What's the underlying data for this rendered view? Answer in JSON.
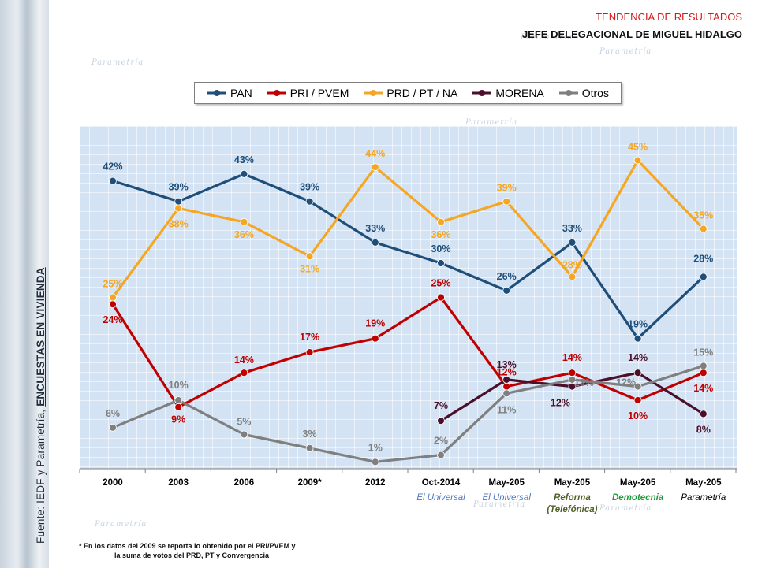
{
  "header": {
    "title": "TENDENCIA DE RESULTADOS",
    "subtitle": "JEFE DELEGACIONAL DE MIGUEL HIDALGO"
  },
  "background_word": "Parametría",
  "source": {
    "prefix": "Fuente: IEDF y Parametría, ",
    "emphasis": "ENCUESTAS EN VIVIENDA"
  },
  "footnote": {
    "line1": "* En los datos del 2009  se reporta lo obtenido por el PRI/PVEM y",
    "line2": "la suma de votos del PRD, PT y  Convergencia"
  },
  "chart_data": {
    "type": "line",
    "title": "TENDENCIA DE RESULTADOS",
    "categories": [
      "2000",
      "2003",
      "2006",
      "2009*",
      "2012",
      "Oct-2014",
      "May-205",
      "May-205",
      "May-205",
      "May-205"
    ],
    "category_sources": [
      "",
      "",
      "",
      "",
      "",
      "El Universal",
      "El Universal",
      "Reforma (Telefónica)",
      "Demotecnia",
      "Parametría"
    ],
    "source_colors": [
      "",
      "",
      "",
      "",
      "",
      "#4f79c0",
      "#4f79c0",
      "#4f6228",
      "#1f9a3a",
      "#000000"
    ],
    "ylim": [
      0,
      50
    ],
    "grid": true,
    "legend_position": "top",
    "series": [
      {
        "name": "PAN",
        "color": "#1f4e79",
        "values": [
          42,
          39,
          43,
          39,
          33,
          30,
          26,
          33,
          19,
          28
        ]
      },
      {
        "name": "PRI / PVEM",
        "color": "#c00000",
        "values": [
          24,
          9,
          14,
          17,
          19,
          25,
          12,
          14,
          10,
          14
        ]
      },
      {
        "name": "PRD / PT / NA",
        "color": "#f5a623",
        "values": [
          25,
          38,
          36,
          31,
          44,
          36,
          39,
          28,
          45,
          35
        ]
      },
      {
        "name": "MORENA",
        "color": "#4a0f2a",
        "values": [
          null,
          null,
          null,
          null,
          null,
          7,
          13,
          12,
          14,
          8
        ]
      },
      {
        "name": "Otros",
        "color": "#7f7f7f",
        "values": [
          6,
          10,
          5,
          3,
          1,
          2,
          11,
          13,
          12,
          15
        ]
      }
    ]
  }
}
